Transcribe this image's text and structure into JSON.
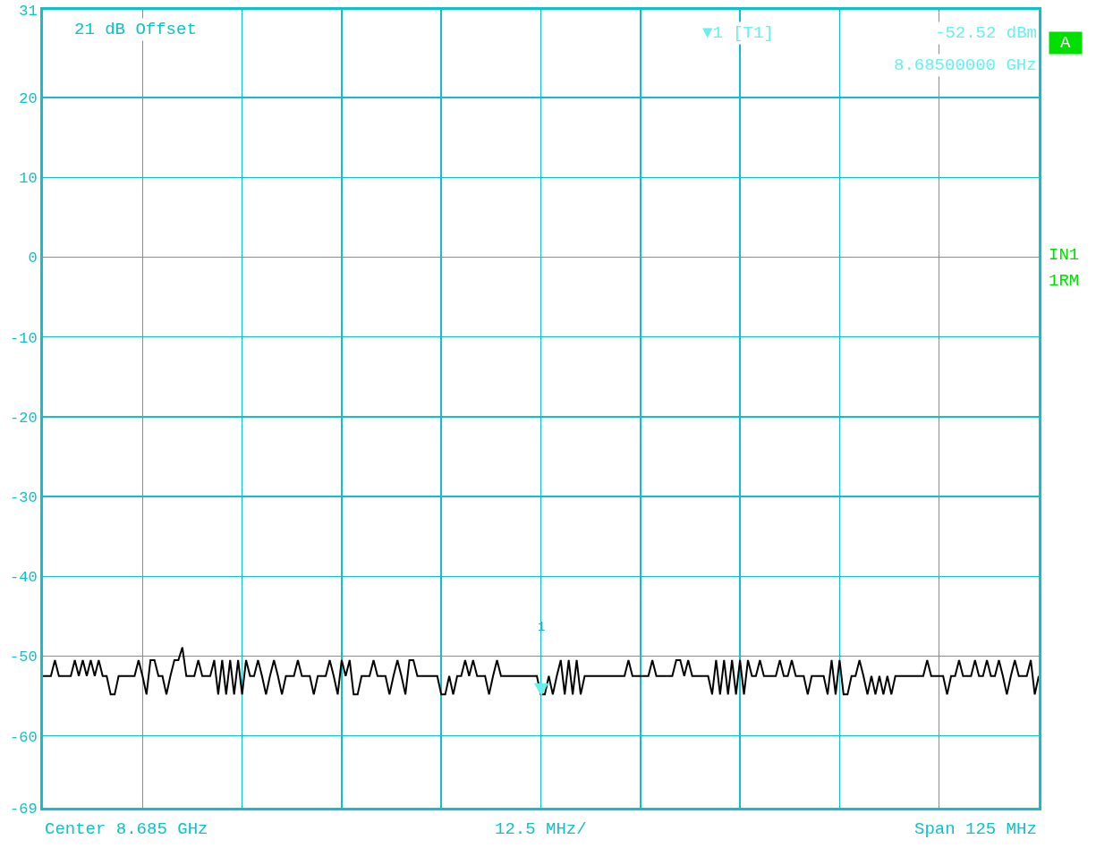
{
  "chart_data": {
    "type": "line",
    "xlabel": "12.5 MHz/",
    "ylim": [
      -69,
      31
    ],
    "yticks": [
      31,
      20,
      10,
      0,
      -10,
      -20,
      -30,
      -40,
      -50,
      -60,
      -69
    ],
    "categories": [
      null,
      null,
      null,
      null,
      null,
      null,
      null,
      null,
      null,
      null,
      null,
      null,
      null,
      null,
      null,
      null,
      null,
      null,
      null,
      null,
      null,
      null,
      null,
      null,
      null,
      null,
      null,
      null,
      null,
      null,
      null,
      null,
      null,
      null,
      null,
      null,
      null,
      null,
      null,
      null,
      null,
      null,
      null,
      null,
      null,
      null,
      null,
      null,
      null,
      null,
      null,
      null,
      null,
      null,
      null,
      null,
      null,
      null,
      null,
      null,
      null,
      null,
      null,
      null,
      null,
      null,
      null,
      null,
      null,
      null,
      null,
      null,
      null,
      null,
      null,
      null,
      null,
      null,
      null,
      null,
      null,
      null,
      null,
      null,
      null,
      null,
      null,
      null,
      null,
      null,
      null,
      null,
      null,
      null,
      null,
      null,
      null,
      null,
      null,
      null,
      null,
      null,
      null,
      null,
      null,
      null,
      null,
      null,
      null,
      null,
      null,
      null,
      null,
      null,
      null,
      null,
      null,
      null,
      null,
      null,
      null,
      null,
      null,
      null,
      null,
      null,
      null,
      null,
      null,
      null,
      null,
      null,
      null,
      null,
      null,
      null,
      null,
      null,
      null,
      null,
      null,
      null,
      null,
      null,
      null,
      null,
      null,
      null,
      null,
      null,
      null,
      null,
      null,
      null,
      null,
      null,
      null,
      null,
      null,
      null,
      null,
      null,
      null,
      null,
      null,
      null,
      null,
      null,
      null,
      null,
      null,
      null,
      null,
      null,
      null,
      null,
      null,
      null,
      null,
      null,
      null,
      null,
      null,
      null,
      null,
      null,
      null,
      null,
      null,
      null,
      null,
      null,
      null,
      null,
      null,
      null,
      null,
      null,
      null,
      null,
      null,
      null,
      null,
      null,
      null,
      null,
      null,
      null,
      null,
      null,
      null,
      null,
      null,
      null,
      null,
      null,
      null,
      null,
      null,
      null,
      null,
      null,
      null,
      null,
      null,
      null,
      null,
      null,
      null,
      null,
      null,
      null,
      null,
      null,
      null,
      null,
      null,
      null,
      null,
      null,
      null,
      null,
      null,
      null,
      null,
      null,
      null,
      null,
      null,
      null,
      null
    ],
    "tick_labels": "y",
    "grid": true,
    "line_style": "solid",
    "series": [
      {
        "color": "#000000",
        "marker": "none",
        "values": [
          -52.5,
          -52.5,
          -52.5,
          -50.5,
          -52.5,
          -52.5,
          -52.5,
          -52.5,
          -50.5,
          -52.5,
          -50.5,
          -52.5,
          -50.5,
          -52.5,
          -50.5,
          -52.5,
          -52.5,
          -54.8,
          -54.8,
          -52.5,
          -52.5,
          -52.5,
          -52.5,
          -52.5,
          -50.5,
          -52.5,
          -54.8,
          -50.5,
          -50.5,
          -52.5,
          -52.5,
          -54.8,
          -52.5,
          -50.5,
          -50.5,
          -48.9,
          -52.5,
          -52.5,
          -52.5,
          -50.5,
          -52.5,
          -52.5,
          -52.5,
          -50.5,
          -54.8,
          -50.5,
          -54.8,
          -50.5,
          -54.8,
          -50.5,
          -54.8,
          -50.5,
          -52.5,
          -52.5,
          -50.5,
          -52.5,
          -54.8,
          -52.5,
          -50.5,
          -52.5,
          -54.8,
          -52.5,
          -52.5,
          -52.5,
          -50.5,
          -52.5,
          -52.5,
          -52.5,
          -54.8,
          -52.5,
          -52.5,
          -52.5,
          -50.5,
          -52.5,
          -54.8,
          -50.5,
          -52.5,
          -50.5,
          -54.8,
          -54.8,
          -52.5,
          -52.5,
          -52.5,
          -50.5,
          -52.5,
          -52.5,
          -52.5,
          -54.8,
          -52.5,
          -50.5,
          -52.5,
          -54.8,
          -50.5,
          -50.5,
          -52.5,
          -52.5,
          -52.5,
          -52.5,
          -52.5,
          -52.5,
          -54.8,
          -54.8,
          -52.5,
          -54.8,
          -52.5,
          -52.5,
          -50.5,
          -52.5,
          -50.5,
          -52.5,
          -52.5,
          -52.5,
          -54.8,
          -52.5,
          -50.5,
          -52.5,
          -52.5,
          -52.5,
          -52.5,
          -52.5,
          -52.5,
          -52.5,
          -52.5,
          -52.5,
          -52.5,
          -54.8,
          -54.8,
          -52.5,
          -54.8,
          -52.5,
          -50.5,
          -54.8,
          -50.5,
          -54.8,
          -50.5,
          -54.8,
          -52.5,
          -52.5,
          -52.5,
          -52.5,
          -52.5,
          -52.5,
          -52.5,
          -52.5,
          -52.5,
          -52.5,
          -52.5,
          -50.5,
          -52.5,
          -52.5,
          -52.5,
          -52.5,
          -52.5,
          -50.5,
          -52.5,
          -52.5,
          -52.5,
          -52.5,
          -52.5,
          -50.5,
          -50.5,
          -52.5,
          -50.5,
          -52.5,
          -52.5,
          -52.5,
          -52.5,
          -52.5,
          -54.8,
          -50.5,
          -54.8,
          -50.5,
          -54.8,
          -50.5,
          -54.8,
          -50.5,
          -54.8,
          -50.5,
          -52.5,
          -52.5,
          -50.5,
          -52.5,
          -52.5,
          -52.5,
          -52.5,
          -50.5,
          -52.5,
          -52.5,
          -50.5,
          -52.5,
          -52.5,
          -52.5,
          -54.8,
          -52.5,
          -52.5,
          -52.5,
          -52.5,
          -54.8,
          -50.5,
          -54.8,
          -50.5,
          -54.8,
          -54.8,
          -52.5,
          -52.5,
          -50.5,
          -52.5,
          -54.8,
          -52.5,
          -54.8,
          -52.5,
          -54.8,
          -52.5,
          -54.8,
          -52.5,
          -52.5,
          -52.5,
          -52.5,
          -52.5,
          -52.5,
          -52.5,
          -52.5,
          -50.5,
          -52.5,
          -52.5,
          -52.5,
          -52.5,
          -54.8,
          -52.5,
          -52.5,
          -50.5,
          -52.5,
          -52.5,
          -52.5,
          -50.5,
          -52.5,
          -52.5,
          -50.5,
          -52.5,
          -52.5,
          -50.5,
          -52.5,
          -54.8,
          -52.5,
          -50.5,
          -52.5,
          -52.5,
          -52.5,
          -50.5,
          -54.8,
          -52.5
        ]
      }
    ],
    "annotations": [
      "21 dB Offset",
      "▼1 [T1]",
      "-52.52 dBm",
      "8.68500000 GHz",
      "A",
      "IN1",
      "1RM",
      "Center 8.685 GHz",
      "Span 125 MHz",
      "1"
    ]
  }
}
